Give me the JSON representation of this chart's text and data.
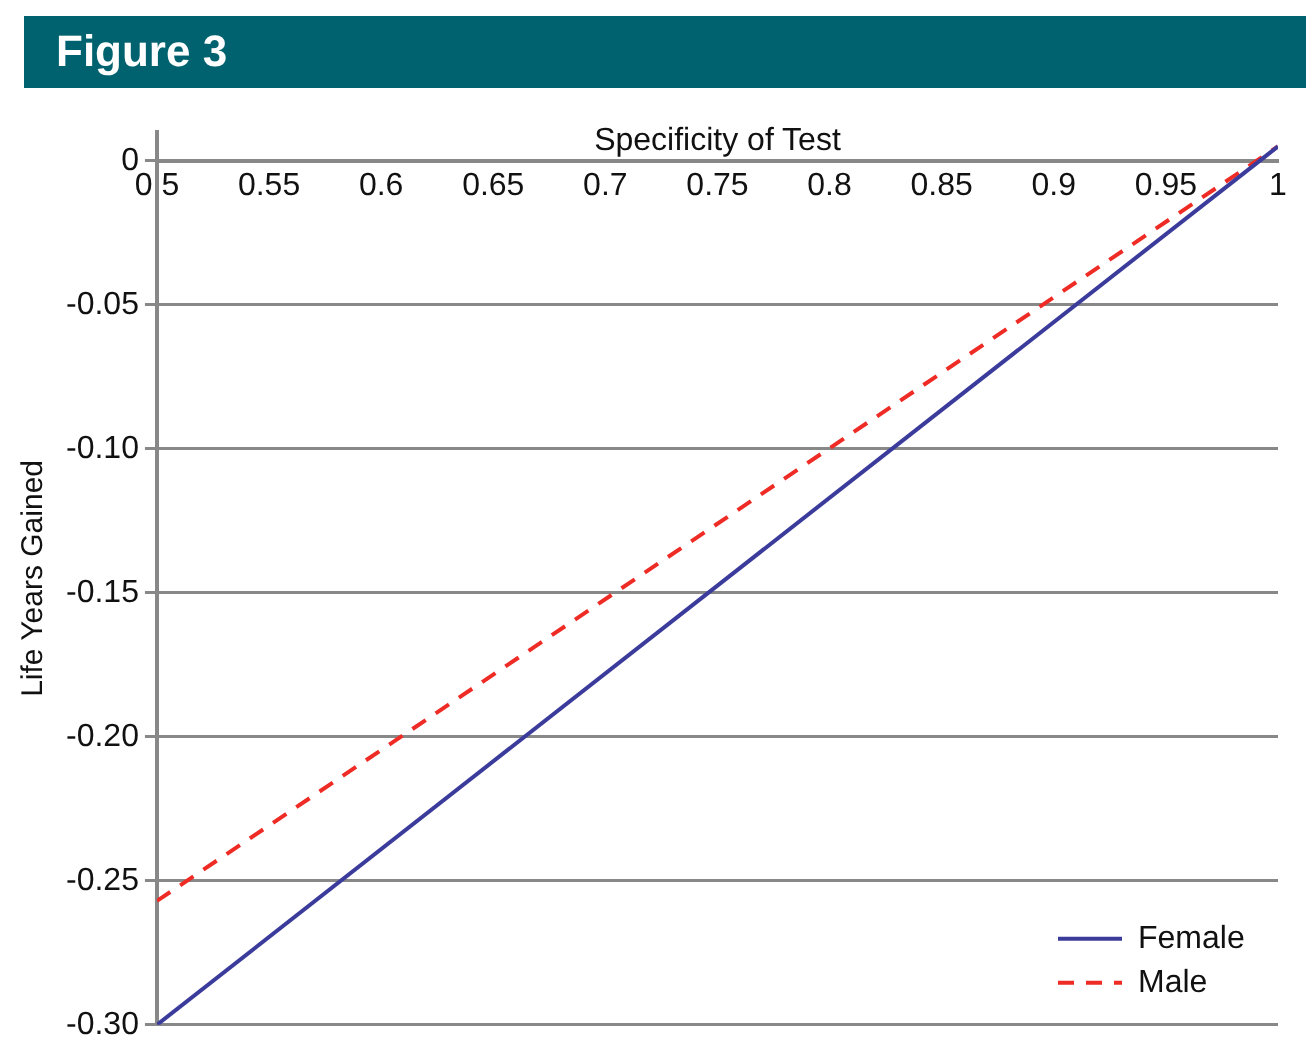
{
  "chart_data": {
    "type": "line",
    "title": "Figure 3",
    "xlabel": "Specificity of Test",
    "ylabel": "Life Years Gained",
    "x": [
      0.5,
      1
    ],
    "series": [
      {
        "name": "Female",
        "color": "#3b3b9c",
        "values": [
          -0.3,
          0.005
        ],
        "line_style": "solid"
      },
      {
        "name": "Male",
        "color": "#ee2b24",
        "values": [
          -0.257,
          0.005
        ],
        "line_style": "dashed"
      }
    ],
    "xlim": [
      0.5,
      1
    ],
    "xticks": [
      0.5,
      0.55,
      0.6,
      0.65,
      0.7,
      0.75,
      0.8,
      0.85,
      0.9,
      0.95,
      1
    ],
    "ylim": [
      -0.3,
      0.01
    ],
    "yticks": [
      0,
      -0.05,
      {
        "value": -0.1,
        "label": "-0.10"
      },
      -0.15,
      {
        "value": -0.2,
        "label": "-0.20"
      },
      -0.25,
      {
        "value": -0.3,
        "label": "-0.30"
      }
    ],
    "grid": "y",
    "legend": "bottom right",
    "marker": "none"
  }
}
